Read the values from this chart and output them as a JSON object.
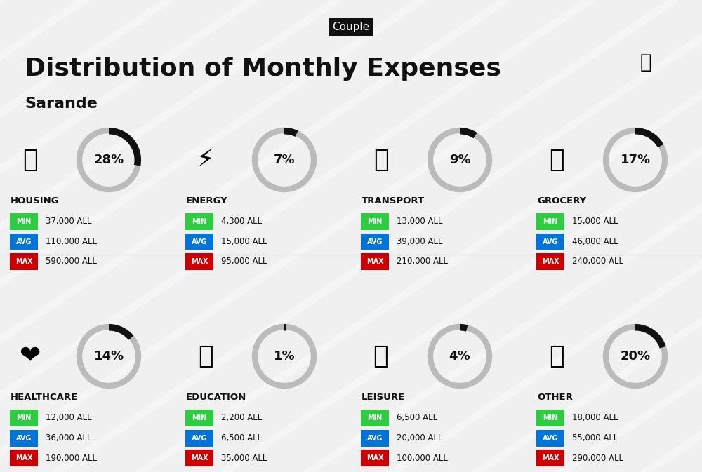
{
  "title": "Distribution of Monthly Expenses",
  "subtitle": "Couple",
  "city": "Sarande",
  "background_color": "#f0f0f0",
  "categories": [
    {
      "name": "HOUSING",
      "pct": 28,
      "min": "37,000 ALL",
      "avg": "110,000 ALL",
      "max": "590,000 ALL",
      "col": 0,
      "row": 0
    },
    {
      "name": "ENERGY",
      "pct": 7,
      "min": "4,300 ALL",
      "avg": "15,000 ALL",
      "max": "95,000 ALL",
      "col": 1,
      "row": 0
    },
    {
      "name": "TRANSPORT",
      "pct": 9,
      "min": "13,000 ALL",
      "avg": "39,000 ALL",
      "max": "210,000 ALL",
      "col": 2,
      "row": 0
    },
    {
      "name": "GROCERY",
      "pct": 17,
      "min": "15,000 ALL",
      "avg": "46,000 ALL",
      "max": "240,000 ALL",
      "col": 3,
      "row": 0
    },
    {
      "name": "HEALTHCARE",
      "pct": 14,
      "min": "12,000 ALL",
      "avg": "36,000 ALL",
      "max": "190,000 ALL",
      "col": 0,
      "row": 1
    },
    {
      "name": "EDUCATION",
      "pct": 1,
      "min": "2,200 ALL",
      "avg": "6,500 ALL",
      "max": "35,000 ALL",
      "col": 1,
      "row": 1
    },
    {
      "name": "LEISURE",
      "pct": 4,
      "min": "6,500 ALL",
      "avg": "20,000 ALL",
      "max": "100,000 ALL",
      "col": 2,
      "row": 1
    },
    {
      "name": "OTHER",
      "pct": 20,
      "min": "18,000 ALL",
      "avg": "55,000 ALL",
      "max": "290,000 ALL",
      "col": 3,
      "row": 1
    }
  ],
  "color_min": "#2ecc40",
  "color_avg": "#0074d9",
  "color_max": "#cc0000",
  "color_dark": "#111111",
  "color_circle_bg": "#cccccc",
  "color_circle_fill": "#222222"
}
